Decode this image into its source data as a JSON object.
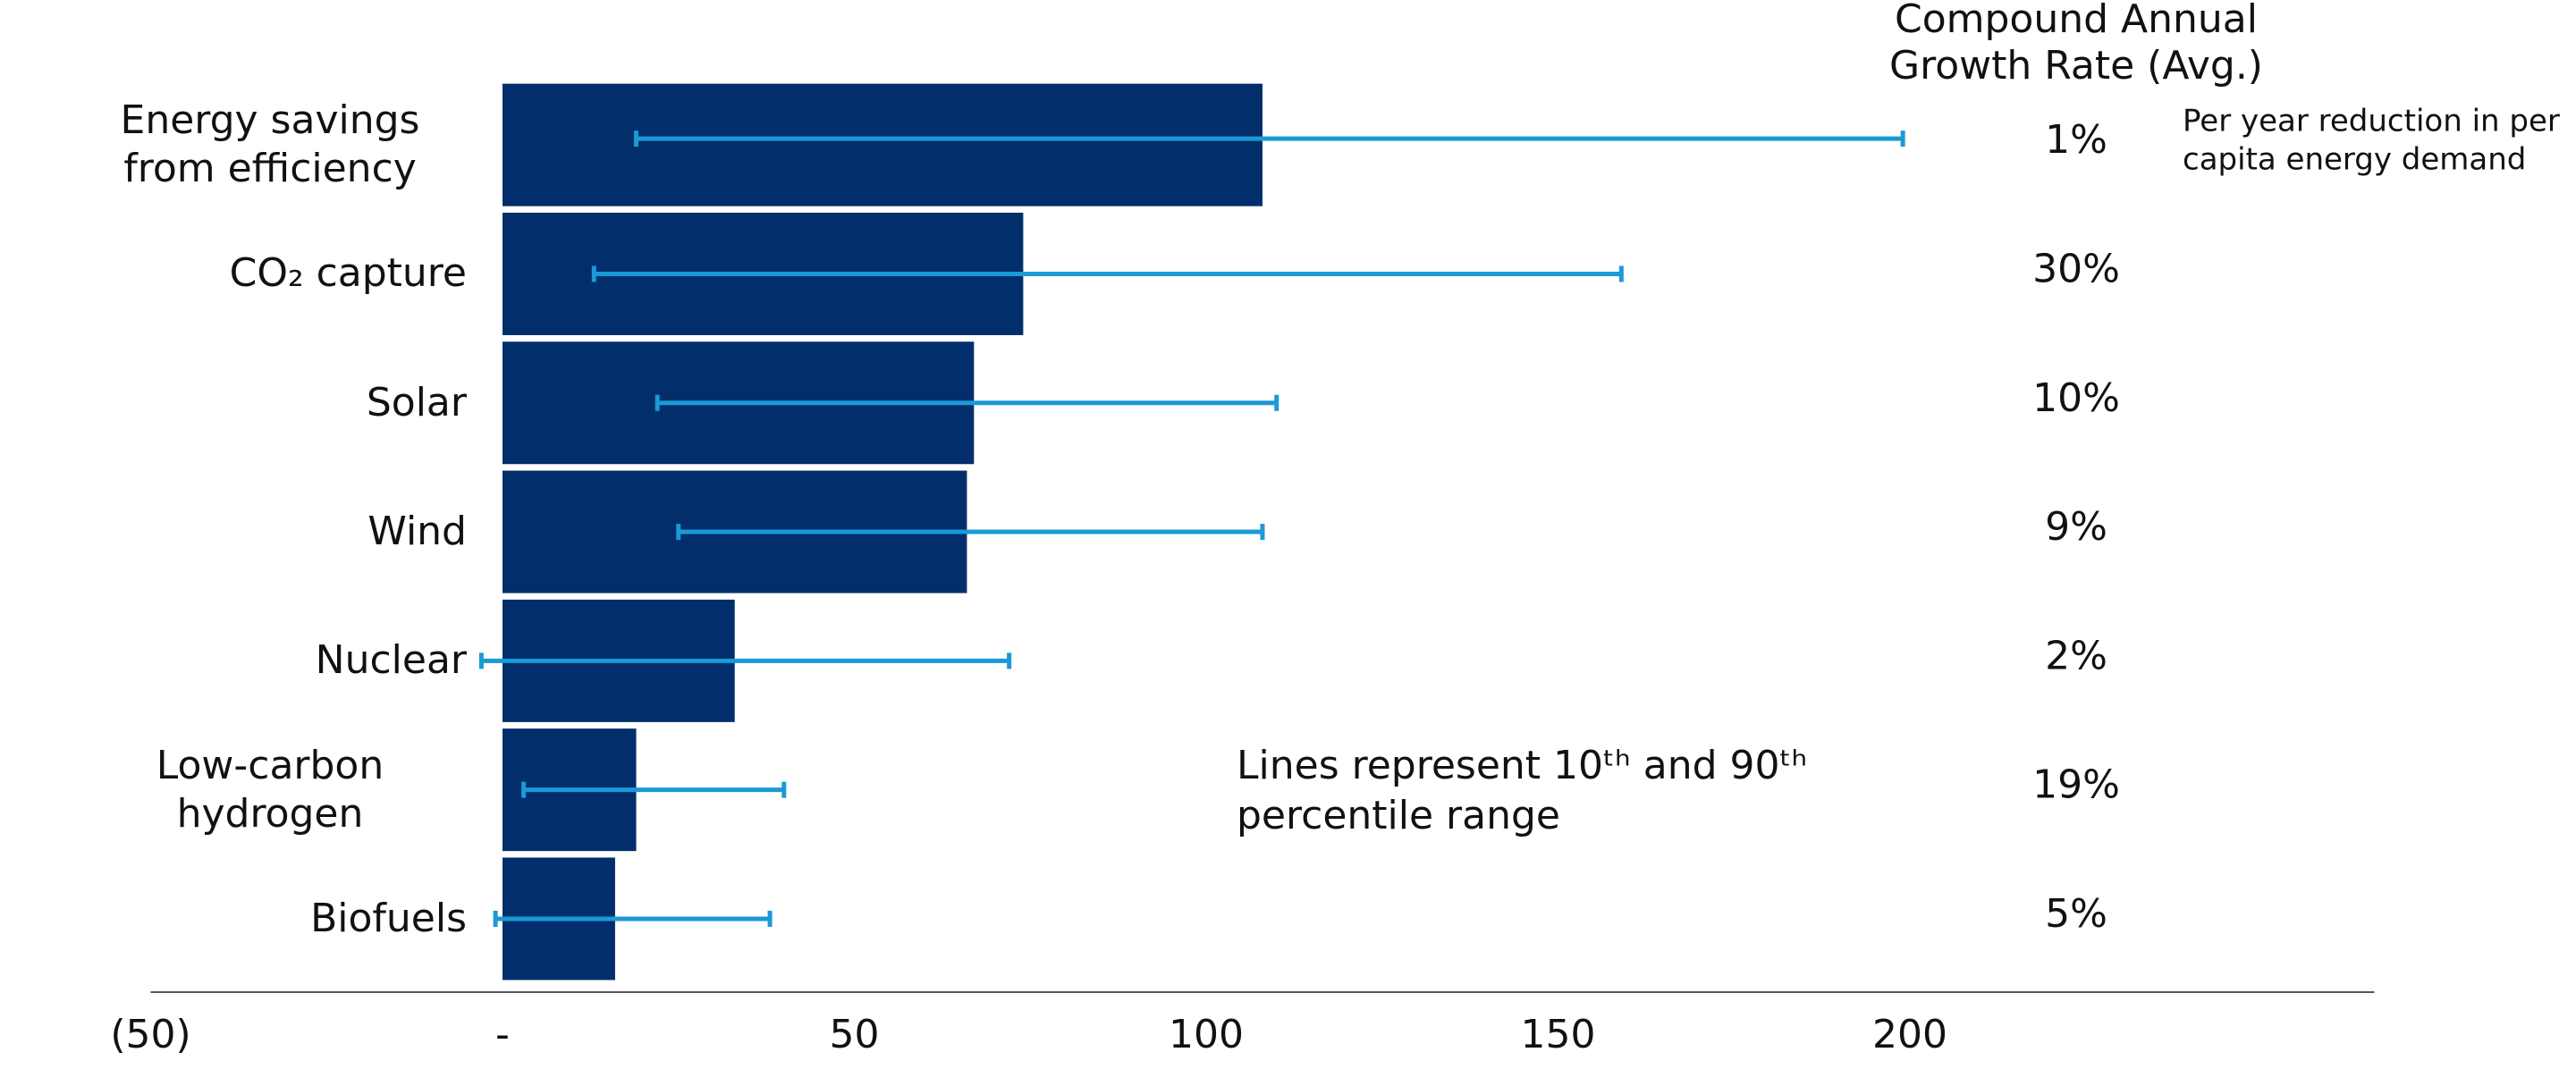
{
  "chart_data": {
    "type": "bar",
    "orientation": "horizontal",
    "categories": [
      "Energy savings from efficiency",
      "CO₂ capture",
      "Solar",
      "Wind",
      "Nuclear",
      "Low-carbon hydrogen",
      "Biofuels"
    ],
    "values": [
      108,
      74,
      67,
      66,
      33,
      19,
      16
    ],
    "color": "#022f6b",
    "range_low": [
      19,
      13,
      22,
      25,
      -3,
      3,
      -1
    ],
    "range_high": [
      199,
      159,
      110,
      108,
      72,
      40,
      38
    ],
    "range_color": "#1a9ad6",
    "xlim": [
      -50,
      266
    ],
    "xticks": [
      {
        "value": -50,
        "label": "(50)"
      },
      {
        "value": 0,
        "label": "-"
      },
      50,
      100,
      150,
      200
    ],
    "grid": false,
    "cagr": {
      "title_lines": [
        "Compound Annual",
        "Growth Rate (Avg.)"
      ],
      "values": [
        1,
        30,
        10,
        9,
        2,
        19,
        5
      ],
      "value_labels": [
        "1%",
        "30%",
        "10%",
        "9%",
        "2%",
        "19%",
        "5%"
      ],
      "note_lines": [
        "Per year reduction in per",
        "capita energy demand"
      ]
    },
    "annotation_lines": [
      "Lines represent 10ᵗʰ and 90ᵗʰ",
      "percentile range"
    ]
  }
}
